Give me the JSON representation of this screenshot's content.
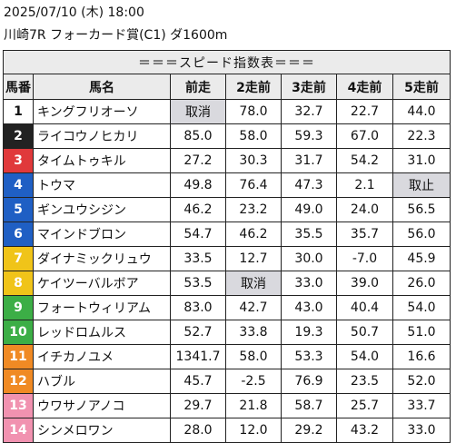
{
  "header": {
    "datetime": "2025/07/10 (木) 18:00",
    "race": "川崎7R フォーカード賞(C1) ダ1600m"
  },
  "table": {
    "title": "＝＝＝スピード指数表＝＝＝",
    "columns": [
      "馬番",
      "馬名",
      "前走",
      "2走前",
      "3走前",
      "4走前",
      "5走前"
    ],
    "rows": [
      {
        "num": "1",
        "name": "キングフリオーソ",
        "vals": [
          "取消",
          "78.0",
          "32.7",
          "22.7",
          "44.0"
        ],
        "grey": [
          0
        ]
      },
      {
        "num": "2",
        "name": "ライコウノヒカリ",
        "vals": [
          "85.0",
          "58.0",
          "59.3",
          "67.0",
          "22.3"
        ],
        "grey": []
      },
      {
        "num": "3",
        "name": "タイムトゥキル",
        "vals": [
          "27.2",
          "30.3",
          "31.7",
          "54.2",
          "31.0"
        ],
        "grey": []
      },
      {
        "num": "4",
        "name": "トウマ",
        "vals": [
          "49.8",
          "76.4",
          "47.3",
          "2.1",
          "取止"
        ],
        "grey": [
          4
        ]
      },
      {
        "num": "5",
        "name": "ギンユウシジン",
        "vals": [
          "46.2",
          "23.2",
          "49.0",
          "24.0",
          "56.5"
        ],
        "grey": []
      },
      {
        "num": "6",
        "name": "マインドブロン",
        "vals": [
          "54.7",
          "46.2",
          "35.5",
          "35.7",
          "56.0"
        ],
        "grey": []
      },
      {
        "num": "7",
        "name": "ダイナミックリュウ",
        "vals": [
          "33.5",
          "12.7",
          "30.0",
          "-7.0",
          "45.9"
        ],
        "grey": []
      },
      {
        "num": "8",
        "name": "ケイツーバルボア",
        "vals": [
          "53.5",
          "取消",
          "33.0",
          "39.0",
          "26.0"
        ],
        "grey": [
          1
        ]
      },
      {
        "num": "9",
        "name": "フォートウィリアム",
        "vals": [
          "83.0",
          "42.7",
          "43.0",
          "40.4",
          "54.0"
        ],
        "grey": []
      },
      {
        "num": "10",
        "name": "レッドロムルス",
        "vals": [
          "52.7",
          "33.8",
          "19.3",
          "50.7",
          "51.0"
        ],
        "grey": []
      },
      {
        "num": "11",
        "name": "イチカノユメ",
        "vals": [
          "1341.7",
          "58.0",
          "53.3",
          "54.0",
          "16.6"
        ],
        "grey": []
      },
      {
        "num": "12",
        "name": "ハブル",
        "vals": [
          "45.7",
          "-2.5",
          "76.9",
          "23.5",
          "52.0"
        ],
        "grey": []
      },
      {
        "num": "13",
        "name": "ウワサノアノコ",
        "vals": [
          "29.7",
          "21.8",
          "58.7",
          "25.7",
          "33.7"
        ],
        "grey": []
      },
      {
        "num": "14",
        "name": "シンメロワン",
        "vals": [
          "28.0",
          "12.0",
          "29.2",
          "43.2",
          "33.0"
        ],
        "grey": []
      }
    ]
  },
  "colors": {
    "frame_colors": {
      "1": "#ffffff",
      "2": "#222222",
      "3": "#e0393b",
      "4": "#1f5fc4",
      "5": "#1f5fc4",
      "6": "#1f5fc4",
      "7": "#f0c419",
      "8": "#f0c419",
      "9": "#3cae46",
      "10": "#3cae46",
      "11": "#f08a24",
      "12": "#f08a24",
      "13": "#f192b0",
      "14": "#f192b0"
    },
    "header_bg": "#ebebeb",
    "cancelled_bg": "#d9d9de"
  }
}
